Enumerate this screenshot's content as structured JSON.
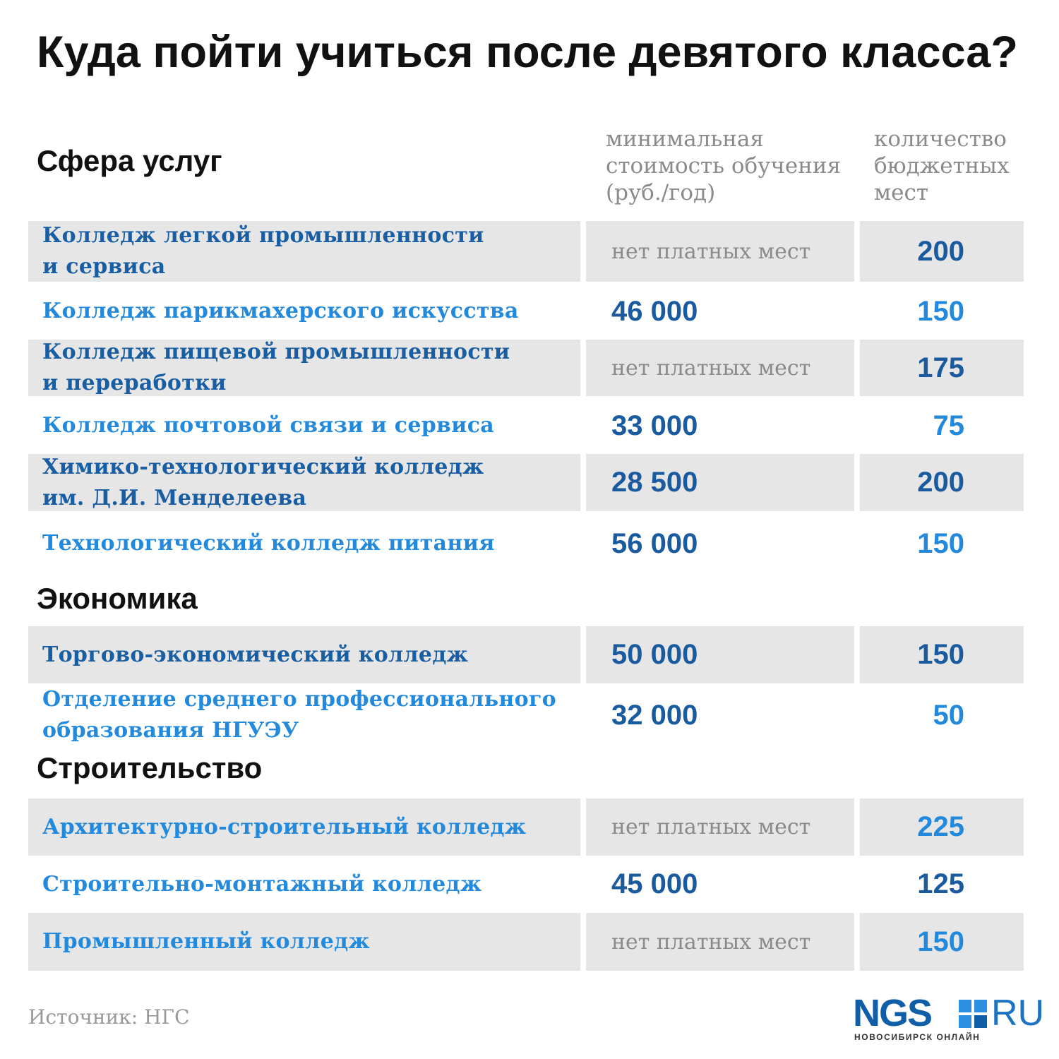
{
  "title": "Куда пойти учиться после девятого класса?",
  "columns": {
    "cost": "минимальная\nстоимость обучения\n(руб./год)",
    "budget": "количество\nбюджетных\nмест"
  },
  "colors": {
    "dark_blue": "#1a5a9e",
    "light_blue": "#2289dc",
    "gray_text": "#8a8a8a",
    "row_gray": "#e6e6e6"
  },
  "chart_data": {
    "type": "table",
    "title": "Куда пойти учиться после девятого класса?",
    "columns": [
      "минимальная стоимость обучения (руб./год)",
      "количество бюджетных мест"
    ],
    "sections": [
      {
        "name": "Сфера услуг",
        "rows": [
          {
            "name": "Колледж легкой промышленности\nи сервиса",
            "cost": "нет платных мест",
            "budget": "200"
          },
          {
            "name": "Колледж парикмахерского искусства",
            "cost": "46 000",
            "budget": "150"
          },
          {
            "name": "Колледж пищевой промышленности\nи переработки",
            "cost": "нет платных мест",
            "budget": "175"
          },
          {
            "name": "Колледж почтовой связи и сервиса",
            "cost": "33 000",
            "budget": "75"
          },
          {
            "name": "Химико-технологический колледж\nим. Д.И. Менделеева",
            "cost": "28 500",
            "budget": "200"
          },
          {
            "name": "Технологический колледж питания",
            "cost": "56 000",
            "budget": "150"
          }
        ]
      },
      {
        "name": "Экономика",
        "rows": [
          {
            "name": "Торгово-экономический колледж",
            "cost": "50 000",
            "budget": "150"
          },
          {
            "name": "Отделение среднего профессионального\nобразования НГУЭУ",
            "cost": "32 000",
            "budget": "50"
          }
        ]
      },
      {
        "name": "Строительство",
        "rows": [
          {
            "name": "Архитектурно-строительный колледж",
            "cost": "нет платных мест",
            "budget": "225"
          },
          {
            "name": "Строительно-монтажный колледж",
            "cost": "45 000",
            "budget": "125"
          },
          {
            "name": "Промышленный колледж",
            "cost": "нет платных мест",
            "budget": "150"
          }
        ]
      }
    ]
  },
  "source": "Источник: НГС",
  "logo": {
    "ngs": "NGS",
    "ru": "RU",
    "subtitle": "НОВОСИБИРСК ОНЛАЙН"
  }
}
